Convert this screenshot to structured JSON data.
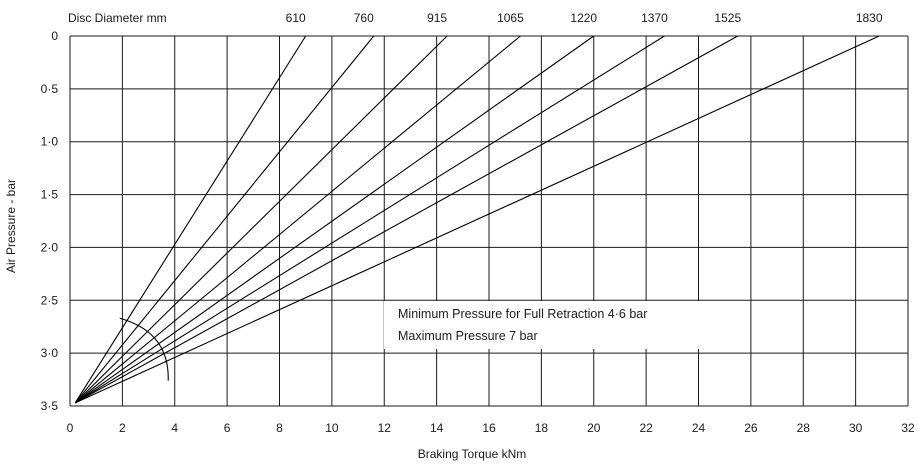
{
  "chart_data": {
    "type": "line",
    "title": "",
    "xlabel": "Braking Torque kNm",
    "ylabel": "Air Pressure - bar",
    "top_axis_label": "Disc Diameter mm",
    "xlim": [
      0,
      32
    ],
    "ylim": [
      0,
      3.5
    ],
    "y_inverted": true,
    "grid": true,
    "x_ticks": [
      "0",
      "2",
      "4",
      "6",
      "8",
      "10",
      "12",
      "14",
      "16",
      "18",
      "20",
      "22",
      "24",
      "26",
      "28",
      "30",
      "32"
    ],
    "y_ticks": [
      "0",
      "0·5",
      "1·0",
      "1·5",
      "2·0",
      "2·5",
      "3·0",
      "3·5"
    ],
    "series": [
      {
        "name": "610",
        "x": [
          0.2,
          9.0
        ],
        "y": [
          3.47,
          0
        ]
      },
      {
        "name": "760",
        "x": [
          0.2,
          11.6
        ],
        "y": [
          3.47,
          0
        ]
      },
      {
        "name": "915",
        "x": [
          0.2,
          14.4
        ],
        "y": [
          3.47,
          0
        ]
      },
      {
        "name": "1065",
        "x": [
          0.2,
          17.2
        ],
        "y": [
          3.47,
          0
        ]
      },
      {
        "name": "1220",
        "x": [
          0.2,
          20.0
        ],
        "y": [
          3.47,
          0
        ]
      },
      {
        "name": "1370",
        "x": [
          0.2,
          22.7
        ],
        "y": [
          3.47,
          0
        ]
      },
      {
        "name": "1525",
        "x": [
          0.2,
          25.5
        ],
        "y": [
          3.47,
          0
        ]
      },
      {
        "name": "1830",
        "x": [
          0.2,
          30.9
        ],
        "y": [
          3.47,
          0
        ]
      }
    ],
    "annotations": [
      "Minimum Pressure for Full Retraction 4·6 bar",
      "Maximum Pressure 7 bar"
    ]
  }
}
